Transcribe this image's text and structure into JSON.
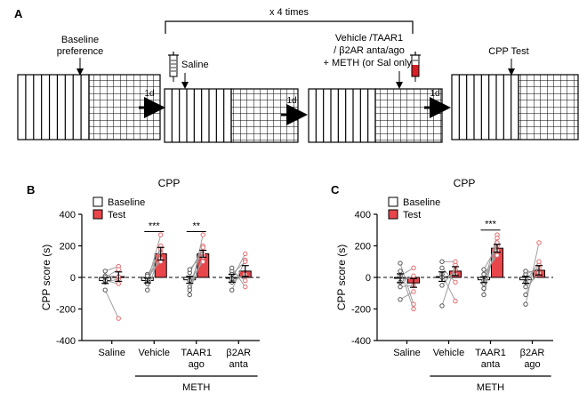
{
  "panel_a": {
    "label": "A",
    "repeat_label": "x 4 times",
    "baseline_label_1": "Baseline",
    "baseline_label_2": "preference",
    "saline_label": "Saline",
    "treatment_line_1": "Vehicle /TAAR1",
    "treatment_line_2": "/ β2AR anta/ago",
    "treatment_line_3": "+ METH (or Sal only)",
    "test_label": "CPP Test",
    "interval_1": "1d",
    "interval_2": "1d",
    "interval_3": "1d"
  },
  "legend": {
    "baseline": "Baseline",
    "test": "Test"
  },
  "colors": {
    "baseline_fill": "#ffffff",
    "test_fill": "#e8464b",
    "test_point": "#e36a6d",
    "baseline_point": "#555555",
    "line": "#9e9e9e"
  },
  "chart_data": [
    {
      "panel": "B",
      "type": "bar",
      "title": "CPP",
      "ylabel": "CPP score (s)",
      "ylim": [
        -400,
        400
      ],
      "yticks": [
        "400",
        "200",
        "0",
        "-200",
        "-400"
      ],
      "group_label": "METH",
      "categories": [
        {
          "line1": "Saline",
          "line2": "",
          "baseline": -20,
          "baseline_err": 18,
          "test": 5,
          "test_err": 30,
          "sig": ""
        },
        {
          "line1": "Vehicle",
          "line2": "",
          "baseline": -20,
          "baseline_err": 15,
          "test": 150,
          "test_err": 40,
          "sig": "***"
        },
        {
          "line1": "TAAR1",
          "line2": "ago",
          "baseline": -15,
          "baseline_err": 22,
          "test": 150,
          "test_err": 22,
          "sig": "**"
        },
        {
          "line1": "β2AR",
          "line2": "anta",
          "baseline": -5,
          "baseline_err": 25,
          "test": 40,
          "test_err": 35,
          "sig": ""
        }
      ],
      "pairs": [
        [
          [
            -30,
            -10
          ],
          [
            10,
            5
          ],
          [
            -80,
            -260
          ],
          [
            40,
            70
          ],
          [
            -20,
            -40
          ],
          [
            0,
            50
          ]
        ],
        [
          [
            -30,
            270
          ],
          [
            -80,
            160
          ],
          [
            -10,
            120
          ],
          [
            20,
            100
          ],
          [
            -40,
            200
          ],
          [
            10,
            180
          ]
        ],
        [
          [
            -110,
            270
          ],
          [
            -60,
            200
          ],
          [
            30,
            190
          ],
          [
            -20,
            100
          ],
          [
            50,
            150
          ],
          [
            -80,
            130
          ]
        ],
        [
          [
            -80,
            110
          ],
          [
            40,
            -20
          ],
          [
            -30,
            20
          ],
          [
            60,
            -60
          ],
          [
            -10,
            150
          ],
          [
            20,
            100
          ]
        ]
      ]
    },
    {
      "panel": "C",
      "type": "bar",
      "title": "CPP",
      "ylabel": "CPP score (s)",
      "ylim": [
        -400,
        400
      ],
      "yticks": [
        "400",
        "200",
        "0",
        "-200",
        "-400"
      ],
      "group_label": "METH",
      "categories": [
        {
          "line1": "Saline",
          "line2": "",
          "baseline": -5,
          "baseline_err": 28,
          "test": -35,
          "test_err": 28,
          "sig": ""
        },
        {
          "line1": "Vehicle",
          "line2": "",
          "baseline": 5,
          "baseline_err": 30,
          "test": 40,
          "test_err": 28,
          "sig": ""
        },
        {
          "line1": "TAAR1",
          "line2": "anta",
          "baseline": -15,
          "baseline_err": 18,
          "test": 185,
          "test_err": 25,
          "sig": "***"
        },
        {
          "line1": "β2AR",
          "line2": "ago",
          "baseline": -15,
          "baseline_err": 22,
          "test": 45,
          "test_err": 30,
          "sig": ""
        }
      ],
      "pairs": [
        [
          [
            90,
            -170
          ],
          [
            40,
            -200
          ],
          [
            -60,
            -50
          ],
          [
            -140,
            -90
          ],
          [
            10,
            60
          ],
          [
            -30,
            10
          ]
        ],
        [
          [
            60,
            -30
          ],
          [
            -180,
            80
          ],
          [
            20,
            -150
          ],
          [
            -50,
            50
          ],
          [
            100,
            100
          ],
          [
            0,
            20
          ]
        ],
        [
          [
            -40,
            270
          ],
          [
            -110,
            250
          ],
          [
            20,
            140
          ],
          [
            -20,
            170
          ],
          [
            50,
            200
          ],
          [
            -70,
            220
          ]
        ],
        [
          [
            -170,
            220
          ],
          [
            -60,
            20
          ],
          [
            -110,
            80
          ],
          [
            20,
            60
          ],
          [
            -30,
            100
          ],
          [
            40,
            30
          ]
        ]
      ]
    }
  ]
}
